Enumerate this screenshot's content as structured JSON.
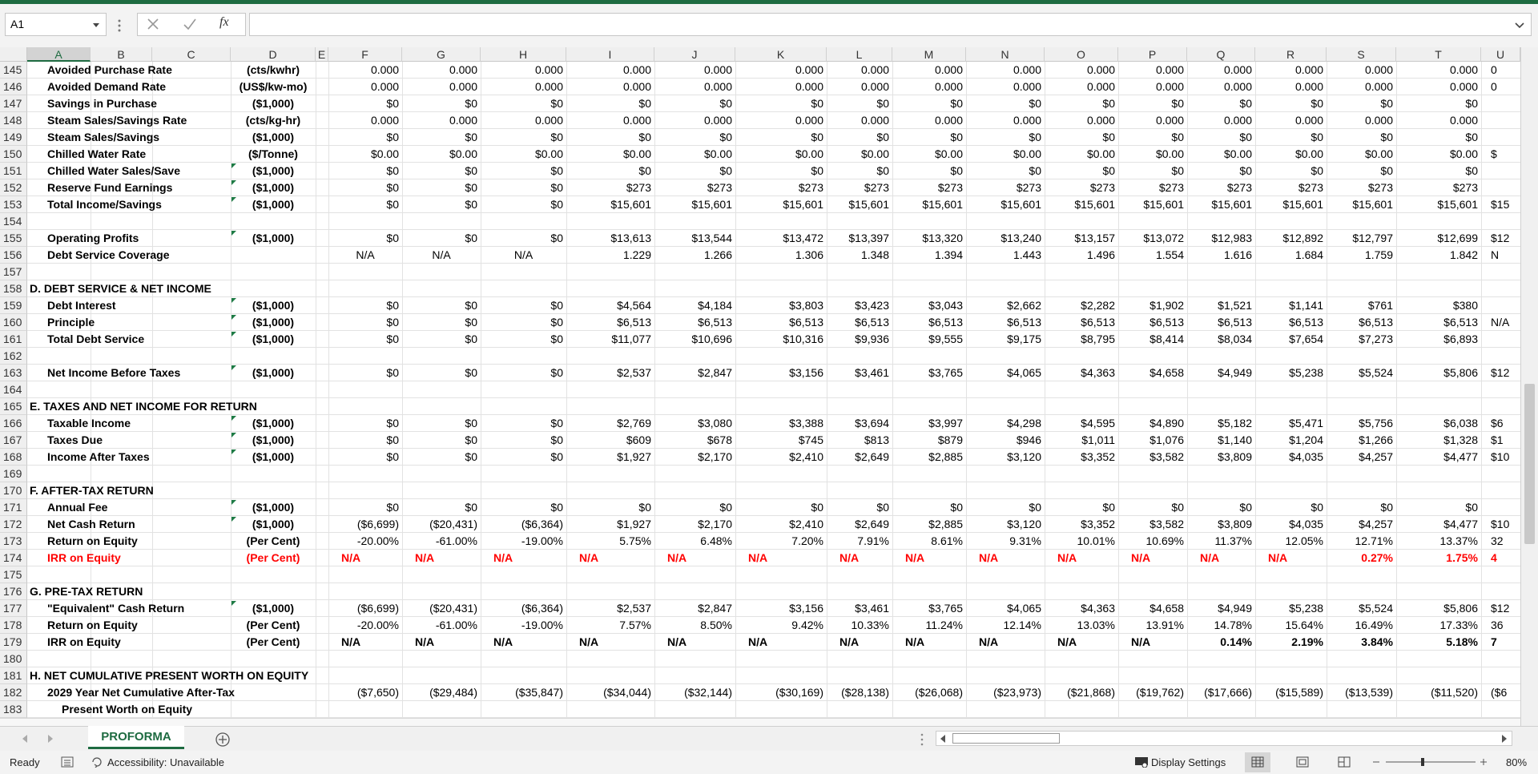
{
  "name_box": "A1",
  "formula_fx": "fx",
  "columns": [
    "A",
    "B",
    "C",
    "D",
    "E",
    "F",
    "G",
    "H",
    "I",
    "J",
    "K",
    "L",
    "M",
    "N",
    "O",
    "P",
    "Q",
    "R",
    "S",
    "T",
    "U"
  ],
  "rows": [
    {
      "num": 145,
      "label": "Avoided Purchase Rate",
      "unit": "(cts/kwhr)",
      "cells": [
        "0.000",
        "0.000",
        "0.000",
        "0.000",
        "0.000",
        "0.000",
        "0.000",
        "0.000",
        "0.000",
        "0.000",
        "0.000",
        "0.000",
        "0.000",
        "0.000",
        "0.000",
        "0"
      ]
    },
    {
      "num": 146,
      "label": "Avoided Demand Rate",
      "unit": "(US$/kw-mo)",
      "cells": [
        "0.000",
        "0.000",
        "0.000",
        "0.000",
        "0.000",
        "0.000",
        "0.000",
        "0.000",
        "0.000",
        "0.000",
        "0.000",
        "0.000",
        "0.000",
        "0.000",
        "0.000",
        "0"
      ]
    },
    {
      "num": 147,
      "label": "Savings in Purchase",
      "unit": "($1,000)",
      "cells": [
        "$0",
        "$0",
        "$0",
        "$0",
        "$0",
        "$0",
        "$0",
        "$0",
        "$0",
        "$0",
        "$0",
        "$0",
        "$0",
        "$0",
        "$0",
        null
      ]
    },
    {
      "num": 148,
      "label": "Steam Sales/Savings Rate",
      "unit": "(cts/kg-hr)",
      "cells": [
        "0.000",
        "0.000",
        "0.000",
        "0.000",
        "0.000",
        "0.000",
        "0.000",
        "0.000",
        "0.000",
        "0.000",
        "0.000",
        "0.000",
        "0.000",
        "0.000",
        "0.000",
        null
      ]
    },
    {
      "num": 149,
      "label": "Steam Sales/Savings",
      "unit": "($1,000)",
      "cells": [
        "$0",
        "$0",
        "$0",
        "$0",
        "$0",
        "$0",
        "$0",
        "$0",
        "$0",
        "$0",
        "$0",
        "$0",
        "$0",
        "$0",
        "$0",
        null
      ]
    },
    {
      "num": 150,
      "label": "Chilled Water Rate",
      "unit": "($/Tonne)",
      "cells": [
        "$0.00",
        "$0.00",
        "$0.00",
        "$0.00",
        "$0.00",
        "$0.00",
        "$0.00",
        "$0.00",
        "$0.00",
        "$0.00",
        "$0.00",
        "$0.00",
        "$0.00",
        "$0.00",
        "$0.00",
        "$"
      ]
    },
    {
      "num": 151,
      "label": "Chilled Water Sales/Save",
      "unit": "($1,000)",
      "cells": [
        "$0",
        "$0",
        "$0",
        "$0",
        "$0",
        "$0",
        "$0",
        "$0",
        "$0",
        "$0",
        "$0",
        "$0",
        "$0",
        "$0",
        "$0",
        null
      ]
    },
    {
      "num": 152,
      "label": "Reserve Fund Earnings",
      "unit": "($1,000)",
      "cells": [
        "$0",
        "$0",
        "$0",
        "$273",
        "$273",
        "$273",
        "$273",
        "$273",
        "$273",
        "$273",
        "$273",
        "$273",
        "$273",
        "$273",
        "$273",
        null
      ]
    },
    {
      "num": 153,
      "label": "Total Income/Savings",
      "unit": "($1,000)",
      "cells": [
        "$0",
        "$0",
        "$0",
        "$15,601",
        "$15,601",
        "$15,601",
        "$15,601",
        "$15,601",
        "$15,601",
        "$15,601",
        "$15,601",
        "$15,601",
        "$15,601",
        "$15,601",
        "$15,601",
        "$15"
      ]
    },
    {
      "num": 154
    },
    {
      "num": 155,
      "label": "Operating Profits",
      "unit": "($1,000)",
      "cells": [
        "$0",
        "$0",
        "$0",
        "$13,613",
        "$13,544",
        "$13,472",
        "$13,397",
        "$13,320",
        "$13,240",
        "$13,157",
        "$13,072",
        "$12,983",
        "$12,892",
        "$12,797",
        "$12,699",
        "$12"
      ]
    },
    {
      "num": 156,
      "label": "Debt Service Coverage",
      "cells": [
        "N/A",
        "N/A",
        "N/A",
        "1.229",
        "1.266",
        "1.306",
        "1.348",
        "1.394",
        "1.443",
        "1.496",
        "1.554",
        "1.616",
        "1.684",
        "1.759",
        "1.842",
        "N"
      ]
    },
    {
      "num": 157
    },
    {
      "num": 158,
      "section": "D. DEBT SERVICE & NET INCOME"
    },
    {
      "num": 159,
      "label": "Debt Interest",
      "unit": "($1,000)",
      "cells": [
        "$0",
        "$0",
        "$0",
        "$4,564",
        "$4,184",
        "$3,803",
        "$3,423",
        "$3,043",
        "$2,662",
        "$2,282",
        "$1,902",
        "$1,521",
        "$1,141",
        "$761",
        "$380",
        null
      ]
    },
    {
      "num": 160,
      "label": "Principle",
      "unit": "($1,000)",
      "cells": [
        "$0",
        "$0",
        "$0",
        "$6,513",
        "$6,513",
        "$6,513",
        "$6,513",
        "$6,513",
        "$6,513",
        "$6,513",
        "$6,513",
        "$6,513",
        "$6,513",
        "$6,513",
        "$6,513",
        "N/A"
      ]
    },
    {
      "num": 161,
      "label": "Total Debt Service",
      "unit": "($1,000)",
      "cells": [
        "$0",
        "$0",
        "$0",
        "$11,077",
        "$10,696",
        "$10,316",
        "$9,936",
        "$9,555",
        "$9,175",
        "$8,795",
        "$8,414",
        "$8,034",
        "$7,654",
        "$7,273",
        "$6,893",
        null
      ]
    },
    {
      "num": 162
    },
    {
      "num": 163,
      "label": "Net Income Before Taxes",
      "unit": "($1,000)",
      "cells": [
        "$0",
        "$0",
        "$0",
        "$2,537",
        "$2,847",
        "$3,156",
        "$3,461",
        "$3,765",
        "$4,065",
        "$4,363",
        "$4,658",
        "$4,949",
        "$5,238",
        "$5,524",
        "$5,806",
        "$12"
      ]
    },
    {
      "num": 164
    },
    {
      "num": 165,
      "section": "E. TAXES AND NET INCOME FOR RETURN"
    },
    {
      "num": 166,
      "label": "Taxable Income",
      "unit": "($1,000)",
      "cells": [
        "$0",
        "$0",
        "$0",
        "$2,769",
        "$3,080",
        "$3,388",
        "$3,694",
        "$3,997",
        "$4,298",
        "$4,595",
        "$4,890",
        "$5,182",
        "$5,471",
        "$5,756",
        "$6,038",
        "$6"
      ]
    },
    {
      "num": 167,
      "label": "Taxes Due",
      "unit": "($1,000)",
      "cells": [
        "$0",
        "$0",
        "$0",
        "$609",
        "$678",
        "$745",
        "$813",
        "$879",
        "$946",
        "$1,011",
        "$1,076",
        "$1,140",
        "$1,204",
        "$1,266",
        "$1,328",
        "$1"
      ]
    },
    {
      "num": 168,
      "label": "Income After Taxes",
      "unit": "($1,000)",
      "cells": [
        "$0",
        "$0",
        "$0",
        "$1,927",
        "$2,170",
        "$2,410",
        "$2,649",
        "$2,885",
        "$3,120",
        "$3,352",
        "$3,582",
        "$3,809",
        "$4,035",
        "$4,257",
        "$4,477",
        "$10"
      ]
    },
    {
      "num": 169
    },
    {
      "num": 170,
      "section": "F. AFTER-TAX RETURN"
    },
    {
      "num": 171,
      "label": "Annual Fee",
      "unit": "($1,000)",
      "cells": [
        "$0",
        "$0",
        "$0",
        "$0",
        "$0",
        "$0",
        "$0",
        "$0",
        "$0",
        "$0",
        "$0",
        "$0",
        "$0",
        "$0",
        "$0",
        null
      ]
    },
    {
      "num": 172,
      "label": "Net Cash Return",
      "unit": "($1,000)",
      "cells": [
        "($6,699)",
        "($20,431)",
        "($6,364)",
        "$1,927",
        "$2,170",
        "$2,410",
        "$2,649",
        "$2,885",
        "$3,120",
        "$3,352",
        "$3,582",
        "$3,809",
        "$4,035",
        "$4,257",
        "$4,477",
        "$10"
      ]
    },
    {
      "num": 173,
      "label": "Return on Equity",
      "unit": "(Per Cent)",
      "cells": [
        "-20.00%",
        "-61.00%",
        "-19.00%",
        "5.75%",
        "6.48%",
        "7.20%",
        "7.91%",
        "8.61%",
        "9.31%",
        "10.01%",
        "10.69%",
        "11.37%",
        "12.05%",
        "12.71%",
        "13.37%",
        "32"
      ]
    },
    {
      "num": 174,
      "label": "IRR on Equity",
      "unit": "(Per Cent)",
      "bold": true,
      "color": "#ff0000",
      "cells": [
        "N/A",
        "N/A",
        "N/A",
        "N/A",
        "N/A",
        "N/A",
        "N/A",
        "N/A",
        "N/A",
        "N/A",
        "N/A",
        "N/A",
        "N/A",
        "0.27%",
        "1.75%",
        "4"
      ]
    },
    {
      "num": 175
    },
    {
      "num": 176,
      "section": "G. PRE-TAX RETURN"
    },
    {
      "num": 177,
      "label": "\"Equivalent\" Cash Return",
      "unit": "($1,000)",
      "cells": [
        "($6,699)",
        "($20,431)",
        "($6,364)",
        "$2,537",
        "$2,847",
        "$3,156",
        "$3,461",
        "$3,765",
        "$4,065",
        "$4,363",
        "$4,658",
        "$4,949",
        "$5,238",
        "$5,524",
        "$5,806",
        "$12"
      ]
    },
    {
      "num": 178,
      "label": "Return on Equity",
      "unit": "(Per Cent)",
      "cells": [
        "-20.00%",
        "-61.00%",
        "-19.00%",
        "7.57%",
        "8.50%",
        "9.42%",
        "10.33%",
        "11.24%",
        "12.14%",
        "13.03%",
        "13.91%",
        "14.78%",
        "15.64%",
        "16.49%",
        "17.33%",
        "36"
      ]
    },
    {
      "num": 179,
      "label": "IRR on Equity",
      "unit": "(Per Cent)",
      "bold": true,
      "cells": [
        "N/A",
        "N/A",
        "N/A",
        "N/A",
        "N/A",
        "N/A",
        "N/A",
        "N/A",
        "N/A",
        "N/A",
        "N/A",
        "0.14%",
        "2.19%",
        "3.84%",
        "5.18%",
        "7"
      ]
    },
    {
      "num": 180
    },
    {
      "num": 181,
      "section": "H. NET CUMULATIVE PRESENT WORTH ON EQUITY"
    },
    {
      "num": 182,
      "label": "2029 Year Net Cumulative After-Tax",
      "cells": [
        "($7,650)",
        "($29,484)",
        "($35,847)",
        "($34,044)",
        "($32,144)",
        "($30,169)",
        "($28,138)",
        "($26,068)",
        "($23,973)",
        "($21,868)",
        "($19,762)",
        "($17,666)",
        "($15,589)",
        "($13,539)",
        "($11,520)",
        "($6"
      ]
    },
    {
      "num": 183,
      "label": "Present Worth on Equity"
    }
  ],
  "sheet_tab": "PROFORMA",
  "status": {
    "ready": "Ready",
    "accessibility": "Accessibility: Unavailable",
    "display": "Display Settings",
    "zoom": "80%"
  }
}
